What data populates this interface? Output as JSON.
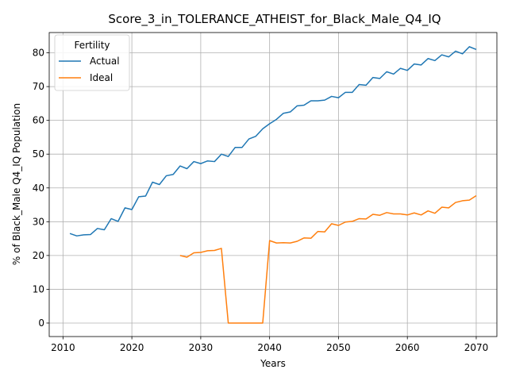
{
  "chart_data": {
    "type": "line",
    "title": "Score_3_in_TOLERANCE_ATHEIST_for_Black_Male_Q4_IQ",
    "xlabel": "Years",
    "ylabel": "% of Black_Male Q4_IQ Population",
    "xlim": [
      2008,
      2073
    ],
    "ylim": [
      -4,
      86
    ],
    "xticks": [
      2010,
      2020,
      2030,
      2040,
      2050,
      2060,
      2070
    ],
    "yticks": [
      0,
      10,
      20,
      30,
      40,
      50,
      60,
      70,
      80
    ],
    "grid": true,
    "legend": {
      "title": "Fertility",
      "position": "top-left"
    },
    "series": [
      {
        "name": "Actual",
        "color": "#1f77b4",
        "x": [
          2011,
          2012,
          2013,
          2014,
          2015,
          2016,
          2017,
          2018,
          2019,
          2020,
          2021,
          2022,
          2023,
          2024,
          2025,
          2026,
          2027,
          2028,
          2029,
          2030,
          2031,
          2032,
          2033,
          2034,
          2035,
          2036,
          2037,
          2038,
          2039,
          2040,
          2041,
          2042,
          2043,
          2044,
          2045,
          2046,
          2047,
          2048,
          2049,
          2050,
          2051,
          2052,
          2053,
          2054,
          2055,
          2056,
          2057,
          2058,
          2059,
          2060,
          2061,
          2062,
          2063,
          2064,
          2065,
          2066,
          2067,
          2068,
          2069,
          2070
        ],
        "y": [
          26.5,
          25.8,
          26.1,
          26.2,
          28.0,
          27.6,
          30.9,
          30.1,
          34.1,
          33.6,
          37.4,
          37.6,
          41.7,
          41.0,
          43.6,
          44.0,
          46.5,
          45.7,
          47.8,
          47.2,
          48.0,
          47.8,
          50.0,
          49.3,
          52.0,
          52.0,
          54.5,
          55.3,
          57.5,
          59.0,
          60.3,
          62.1,
          62.5,
          64.3,
          64.5,
          65.8,
          65.8,
          66.0,
          67.1,
          66.7,
          68.3,
          68.3,
          70.6,
          70.4,
          72.7,
          72.4,
          74.4,
          73.7,
          75.4,
          74.8,
          76.7,
          76.4,
          78.3,
          77.7,
          79.4,
          78.8,
          80.5,
          79.7,
          81.8,
          81.0
        ]
      },
      {
        "name": "Ideal",
        "color": "#ff7f0e",
        "x": [
          2027,
          2028,
          2029,
          2030,
          2031,
          2032,
          2033,
          2034,
          2035,
          2036,
          2037,
          2038,
          2039,
          2040,
          2041,
          2042,
          2043,
          2044,
          2045,
          2046,
          2047,
          2048,
          2049,
          2050,
          2051,
          2052,
          2053,
          2054,
          2055,
          2056,
          2057,
          2058,
          2059,
          2060,
          2061,
          2062,
          2063,
          2064,
          2065,
          2066,
          2067,
          2068,
          2069,
          2070
        ],
        "y": [
          20.0,
          19.5,
          20.8,
          20.9,
          21.4,
          21.5,
          22.1,
          0.0,
          0.0,
          0.0,
          0.0,
          0.0,
          0.0,
          24.4,
          23.7,
          23.8,
          23.7,
          24.2,
          25.2,
          25.1,
          27.1,
          27.0,
          29.4,
          28.9,
          29.9,
          30.1,
          30.9,
          30.8,
          32.2,
          31.9,
          32.7,
          32.3,
          32.3,
          32.0,
          32.6,
          32.0,
          33.2,
          32.5,
          34.3,
          34.1,
          35.7,
          36.2,
          36.4,
          37.7
        ]
      }
    ]
  }
}
